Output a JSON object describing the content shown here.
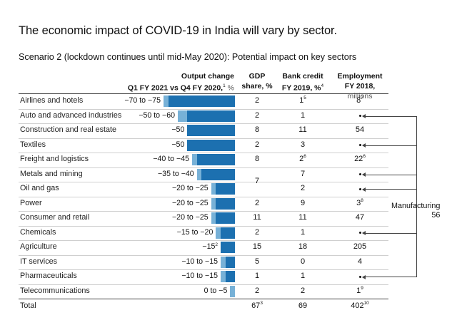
{
  "chart_data": {
    "type": "table",
    "title": "The economic impact of COVID-19 in India will vary by sector.",
    "subtitle": "Scenario 2 (lockdown continues until mid-May 2020): Potential impact on key sectors",
    "columns": {
      "output": {
        "line1": "Output change",
        "line2": "Q1 FY 2021 vs Q4 FY 2020,",
        "sup": "1",
        "unit": " %"
      },
      "gdp": {
        "line1": "GDP",
        "line2": "share, %"
      },
      "bank": {
        "line1": "Bank credit",
        "line2": "FY 2019, %",
        "sup": "4"
      },
      "employment": {
        "line1": "Employment",
        "line2": "FY 2018,",
        "unit": " millions"
      }
    },
    "rows": [
      {
        "sector": "Airlines and hotels",
        "output_label": "−70 to −75",
        "output_sup": "",
        "low": 70,
        "high": 75,
        "gdp": "2",
        "gdp_sup": "",
        "bank": "1",
        "bank_sup": "5",
        "emp": "8",
        "emp_sup": "7",
        "manufacturing": false
      },
      {
        "sector": "Auto and advanced industries",
        "output_label": "−50 to −60",
        "output_sup": "",
        "low": 50,
        "high": 60,
        "gdp": "2",
        "gdp_sup": "",
        "bank": "1",
        "bank_sup": "",
        "emp": "",
        "emp_sup": "",
        "manufacturing": true
      },
      {
        "sector": "Construction and real estate",
        "output_label": "−50",
        "output_sup": "",
        "low": 50,
        "high": 50,
        "gdp": "8",
        "gdp_sup": "",
        "bank": "11",
        "bank_sup": "",
        "emp": "54",
        "emp_sup": "",
        "manufacturing": false
      },
      {
        "sector": "Textiles",
        "output_label": "−50",
        "output_sup": "",
        "low": 50,
        "high": 50,
        "gdp": "2",
        "gdp_sup": "",
        "bank": "3",
        "bank_sup": "",
        "emp": "",
        "emp_sup": "",
        "manufacturing": true
      },
      {
        "sector": "Freight and logistics",
        "output_label": "−40 to −45",
        "output_sup": "",
        "low": 40,
        "high": 45,
        "gdp": "8",
        "gdp_sup": "",
        "bank": "2",
        "bank_sup": "6",
        "emp": "22",
        "emp_sup": "6",
        "manufacturing": false
      },
      {
        "sector": "Metals and mining",
        "output_label": "−35 to −40",
        "output_sup": "",
        "low": 35,
        "high": 40,
        "gdp": "",
        "gdp_sup": "",
        "bank": "7",
        "bank_sup": "",
        "emp": "",
        "emp_sup": "",
        "manufacturing": true
      },
      {
        "sector": "Oil and gas",
        "output_label": "−20 to −25",
        "output_sup": "",
        "low": 20,
        "high": 25,
        "gdp": "",
        "gdp_sup": "",
        "bank": "2",
        "bank_sup": "",
        "emp": "",
        "emp_sup": "",
        "manufacturing": true
      },
      {
        "sector": "Power",
        "output_label": "−20 to −25",
        "output_sup": "",
        "low": 20,
        "high": 25,
        "gdp": "2",
        "gdp_sup": "",
        "bank": "9",
        "bank_sup": "",
        "emp": "3",
        "emp_sup": "8",
        "manufacturing": false
      },
      {
        "sector": "Consumer and retail",
        "output_label": "−20 to −25",
        "output_sup": "",
        "low": 20,
        "high": 25,
        "gdp": "11",
        "gdp_sup": "",
        "bank": "11",
        "bank_sup": "",
        "emp": "47",
        "emp_sup": "",
        "manufacturing": false
      },
      {
        "sector": "Chemicals",
        "output_label": "−15 to −20",
        "output_sup": "",
        "low": 15,
        "high": 20,
        "gdp": "2",
        "gdp_sup": "",
        "bank": "1",
        "bank_sup": "",
        "emp": "",
        "emp_sup": "",
        "manufacturing": true
      },
      {
        "sector": "Agriculture",
        "output_label": "−15",
        "output_sup": "2",
        "low": 15,
        "high": 15,
        "gdp": "15",
        "gdp_sup": "",
        "bank": "18",
        "bank_sup": "",
        "emp": "205",
        "emp_sup": "",
        "manufacturing": false
      },
      {
        "sector": "IT services",
        "output_label": "−10 to −15",
        "output_sup": "",
        "low": 10,
        "high": 15,
        "gdp": "5",
        "gdp_sup": "",
        "bank": "0",
        "bank_sup": "",
        "emp": "4",
        "emp_sup": "",
        "manufacturing": false
      },
      {
        "sector": "Pharmaceuticals",
        "output_label": "−10 to −15",
        "output_sup": "",
        "low": 10,
        "high": 15,
        "gdp": "1",
        "gdp_sup": "",
        "bank": "1",
        "bank_sup": "",
        "emp": "",
        "emp_sup": "",
        "manufacturing": true
      },
      {
        "sector": "Telecommunications",
        "output_label": "0 to −5",
        "output_sup": "",
        "low": 0,
        "high": 5,
        "gdp": "2",
        "gdp_sup": "",
        "bank": "2",
        "bank_sup": "",
        "emp": "1",
        "emp_sup": "9",
        "manufacturing": false
      }
    ],
    "merged_gdp": {
      "value": "7",
      "rows": [
        "Metals and mining",
        "Oil and gas"
      ]
    },
    "total": {
      "label": "Total",
      "gdp": "67",
      "gdp_sup": "3",
      "bank": "69",
      "bank_sup": "",
      "emp": "402",
      "emp_sup": "10"
    },
    "manufacturing": {
      "label": "Manufacturing",
      "value": "56"
    },
    "colors": {
      "dark": "#1c70b0",
      "light": "#77b1d7"
    },
    "xlim": [
      0,
      75
    ]
  }
}
